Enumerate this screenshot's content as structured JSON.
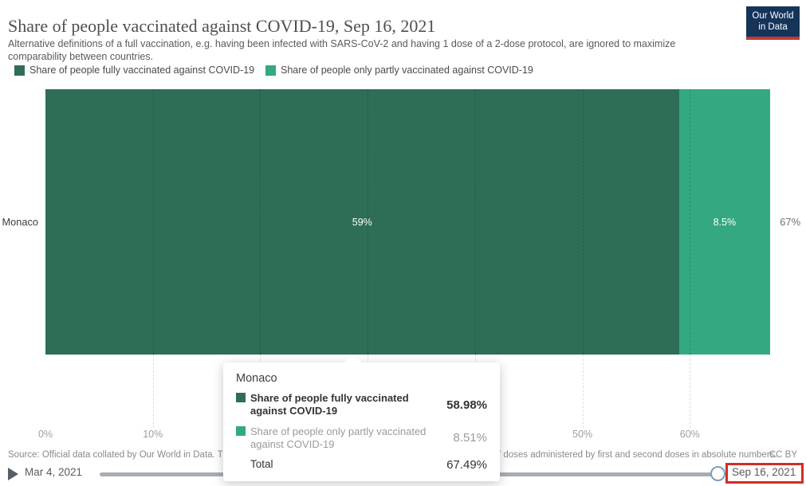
{
  "header": {
    "title": "Share of people vaccinated against COVID-19, Sep 16, 2021",
    "subtitle": "Alternative definitions of a full vaccination, e.g. having been infected with SARS-CoV-2 and having 1 dose of a 2-dose protocol, are ignored to maximize comparability between countries.",
    "logo": {
      "line1": "Our World",
      "line2": "in Data"
    }
  },
  "legend": {
    "items": [
      {
        "label": "Share of people fully vaccinated against COVID-19",
        "color": "#2E6E56"
      },
      {
        "label": "Share of people only partly vaccinated against COVID-19",
        "color": "#34A881"
      }
    ]
  },
  "chart_data": {
    "type": "bar",
    "orientation": "horizontal",
    "title": "Share of people vaccinated against COVID-19, Sep 16, 2021",
    "categories": [
      "Monaco"
    ],
    "series": [
      {
        "name": "Share of people fully vaccinated against COVID-19",
        "values": [
          58.98
        ],
        "color": "#2E6E56",
        "bar_label": "59%"
      },
      {
        "name": "Share of people only partly vaccinated against COVID-19",
        "values": [
          8.51
        ],
        "color": "#34A881",
        "bar_label": "8.5%"
      }
    ],
    "total_value": 67.49,
    "total_label": "67%",
    "xlabel": "",
    "ylabel": "",
    "xlim": [
      0,
      70
    ],
    "x_ticks": [
      "0%",
      "10%",
      "20%",
      "30%",
      "40%",
      "50%",
      "60%"
    ],
    "grid": true,
    "legend_position": "top"
  },
  "tooltip": {
    "title": "Monaco",
    "rows": [
      {
        "label": "Share of people fully vaccinated against COVID-19",
        "value": "58.98%",
        "color": "#2E6E56"
      },
      {
        "label": "Share of people only partly vaccinated against COVID-19",
        "value": "8.51%",
        "color": "#34A881"
      }
    ],
    "total_label": "Total",
    "total_value": "67.49%"
  },
  "footer": {
    "source": "Source: Official data collated by Our World in Data. This data is only available for countries which report the breakdown of doses administered by first and second doses in absolute numbers.",
    "license": "CC BY"
  },
  "timeline": {
    "start_label": "Mar 4, 2021",
    "end_label": "Sep 16, 2021"
  },
  "colors": {
    "fully_vaccinated": "#2E6E56",
    "partly_vaccinated": "#34A881",
    "logo_navy": "#15345A",
    "logo_red": "#C13A34",
    "annotation_red": "#CF2E26"
  }
}
